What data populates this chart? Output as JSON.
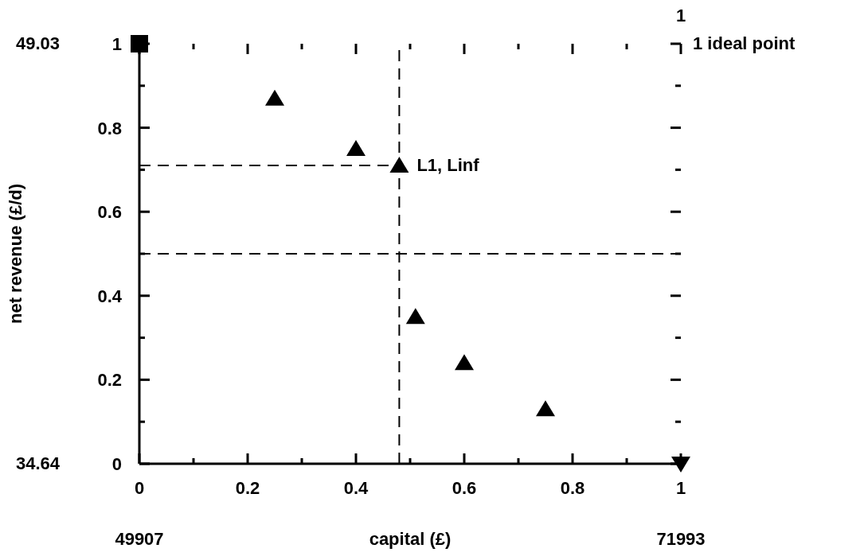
{
  "chart_data": {
    "type": "scatter",
    "xlabel": "capital (£)",
    "ylabel": "net revenue (£/d)",
    "legend": false,
    "grid": false,
    "xlim": [
      0,
      1
    ],
    "ylim": [
      0,
      1
    ],
    "xticks": [
      0,
      {
        "value": 0.1,
        "label": null
      },
      0.2,
      {
        "value": 0.3,
        "label": null
      },
      0.4,
      {
        "value": 0.5,
        "label": null
      },
      0.6,
      {
        "value": 0.7,
        "label": null
      },
      0.8,
      {
        "value": 0.9,
        "label": null
      },
      1
    ],
    "yticks": [
      0,
      {
        "value": 0.1,
        "label": null
      },
      0.2,
      {
        "value": 0.3,
        "label": null
      },
      0.4,
      {
        "value": 0.5,
        "label": null
      },
      0.6,
      {
        "value": 0.7,
        "label": null
      },
      0.8,
      {
        "value": 0.9,
        "label": null
      },
      1
    ],
    "series": [
      {
        "type": "scatter",
        "color": "#000000",
        "marker": "triangle",
        "x": [
          0.25,
          0.4,
          0.48,
          0.51,
          0.6,
          0.75
        ],
        "values": [
          0.87,
          0.75,
          0.71,
          0.35,
          0.24,
          0.13
        ]
      },
      {
        "type": "scatter",
        "color": "#000000",
        "marker": "square",
        "x": [
          0
        ],
        "values": [
          1
        ]
      },
      {
        "type": "scatter",
        "color": "#000000",
        "marker": "triangle-down",
        "x": [
          1
        ],
        "values": [
          0
        ]
      },
      {
        "type": "line",
        "color": "#000000",
        "marker": "none",
        "line_style": "dashed",
        "x": [
          0,
          0.48
        ],
        "values": [
          0.71,
          0.71
        ]
      }
    ],
    "ref_lines": [
      {
        "axis": "x",
        "value": 0.48,
        "color": "#000000",
        "line_style": "dashed"
      },
      {
        "axis": "y",
        "value": 0.5,
        "color": "#000000",
        "line_style": "dashed"
      }
    ],
    "annotations": [
      {
        "text": "L1, Linf",
        "x": 0.48,
        "y": 0.71
      },
      "49.03",
      "34.64",
      "49907",
      "71993",
      "1",
      "1 ideal point"
    ]
  }
}
